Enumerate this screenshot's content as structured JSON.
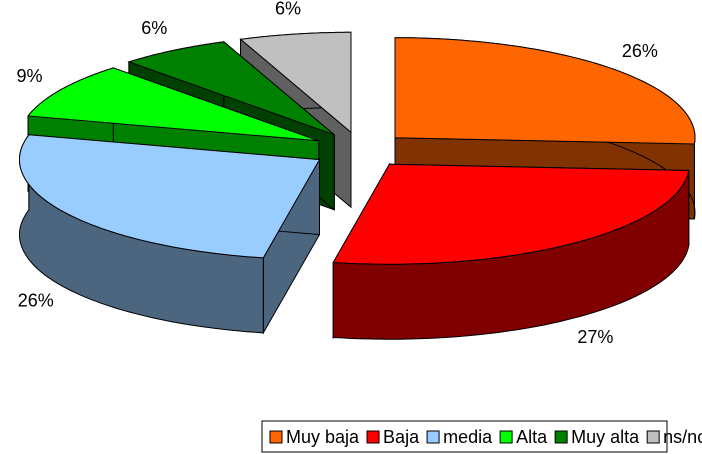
{
  "chart_data": {
    "type": "pie3d",
    "categories": [
      "Muy baja",
      "Baja",
      "media",
      "Alta",
      "Muy alta",
      "ns/nc"
    ],
    "values": [
      26,
      27,
      26,
      9,
      6,
      6
    ],
    "value_labels": [
      "26%",
      "27%",
      "26%",
      "9%",
      "6%",
      "6%"
    ],
    "colors": [
      "#ff6600",
      "#ff0000",
      "#99ccff",
      "#00ff00",
      "#008000",
      "#c0c0c0"
    ],
    "legend": "bottom"
  }
}
